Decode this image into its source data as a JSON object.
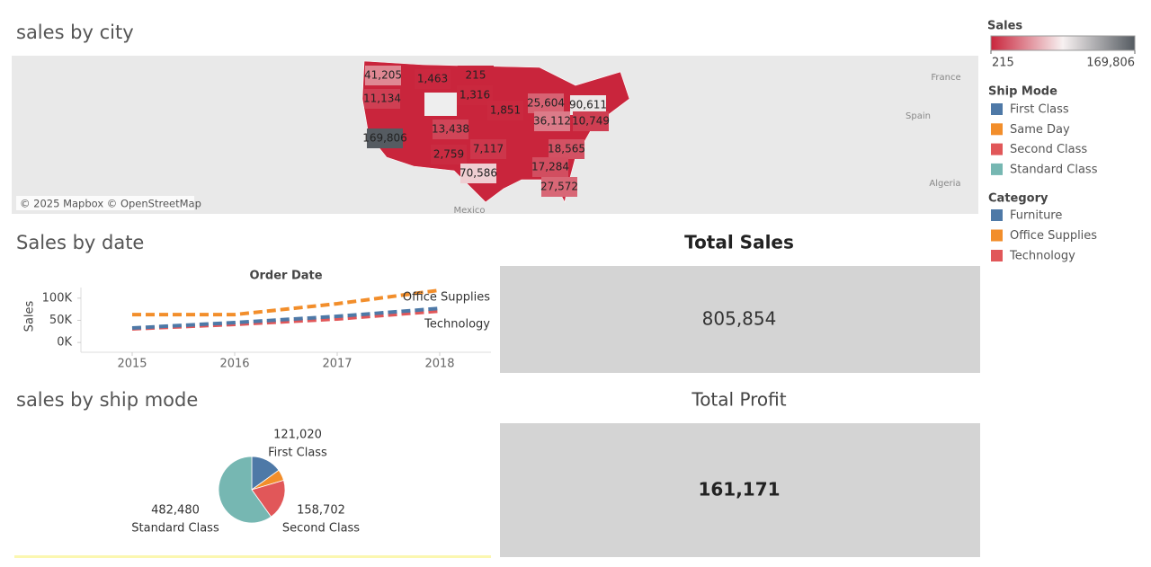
{
  "chart_data": [
    {
      "type": "map",
      "title": "sales by city",
      "values": [
        41205,
        1463,
        215,
        11134,
        1316,
        1851,
        25604,
        90611,
        36112,
        10749,
        169806,
        13438,
        7117,
        18565,
        2759,
        70586,
        17284,
        27572
      ],
      "value_labels": [
        "41,205",
        "1,463",
        "215",
        "11,134",
        "1,316",
        "1,851",
        "25,604",
        "90,611",
        "36,112",
        "10,749",
        "169,806",
        "13,438",
        "7,117",
        "18,565",
        "2,759",
        "70,586",
        "17,284",
        "27,572"
      ],
      "places": [
        "France",
        "Spain",
        "Algeria",
        "Mexico"
      ],
      "attribution": "© 2025 Mapbox © OpenStreetMap",
      "colorbar": {
        "title": "Sales",
        "lim": [
          215,
          169806
        ],
        "ticks": [
          215,
          {
            "value": 169806,
            "label": "169,806"
          }
        ],
        "colors": [
          "#c9253c",
          "#f7f1f1",
          "#555b61"
        ]
      }
    },
    {
      "type": "line",
      "title": "Sales by date",
      "x_label": "Order Date",
      "y_label": "Sales",
      "x": [
        2015,
        2016,
        2017,
        2018
      ],
      "xlim": [
        2014.5,
        2018.5
      ],
      "xticks": [
        2015,
        2016,
        2017,
        2018
      ],
      "ylim": [
        -18000,
        124000
      ],
      "yticks": [
        {
          "value": 0,
          "label": "0K"
        },
        {
          "value": 50000,
          "label": "50K"
        },
        {
          "value": 100000,
          "label": "100K"
        }
      ],
      "legend_title": "Category",
      "series": [
        {
          "name": "Furniture",
          "color": "#4e79a7",
          "values": [
            32700,
            44900,
            59000,
            77000
          ]
        },
        {
          "name": "Office Supplies",
          "color": "#f28e2b",
          "values": [
            63000,
            63000,
            87500,
            118000
          ]
        },
        {
          "name": "Technology",
          "color": "#e15759",
          "values": [
            30700,
            40800,
            53000,
            71000
          ]
        }
      ]
    },
    {
      "type": "pie",
      "title": "sales by ship mode",
      "legend_title": "Ship Mode",
      "categories": [
        "First Class",
        "Same Day",
        "Second Class",
        "Standard Class"
      ],
      "values": [
        121020,
        43652,
        158702,
        482480
      ],
      "value_labels": [
        "121,020",
        null,
        "158,702",
        "482,480"
      ],
      "colors": [
        "#4e79a7",
        "#f28e2b",
        "#e15759",
        "#76b7b2"
      ]
    }
  ],
  "kpis": [
    {
      "title": "Total Sales",
      "value": "805,854"
    },
    {
      "title": "Total Profit",
      "value": "161,171"
    }
  ]
}
